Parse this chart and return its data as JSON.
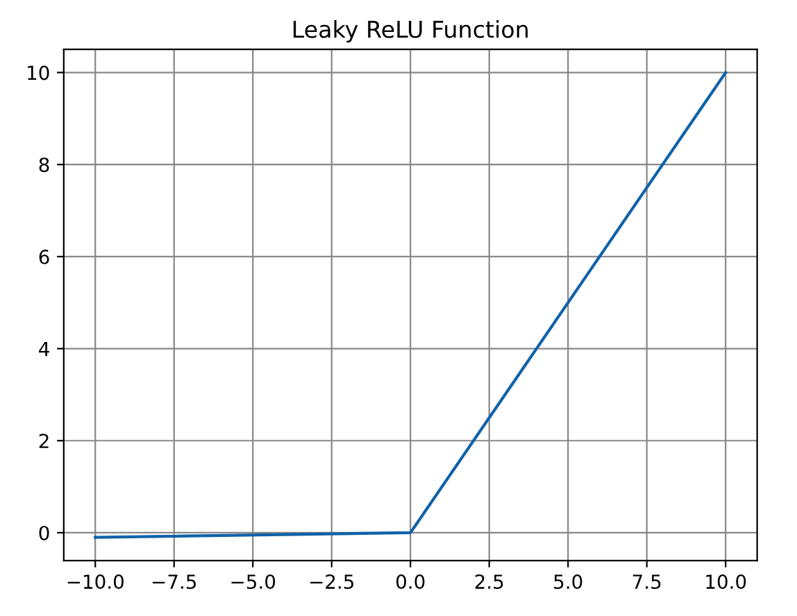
{
  "chart_data": {
    "type": "line",
    "title": "Leaky ReLU Function",
    "x": [
      -10,
      0,
      10
    ],
    "series": [
      {
        "color": "#0f62a8",
        "values": [
          -0.1,
          0,
          10
        ]
      }
    ],
    "xlim": [
      -11,
      11
    ],
    "ylim": [
      -0.605,
      10.505
    ],
    "xticks": [
      {
        "value": -10,
        "label": "−10.0"
      },
      {
        "value": -7.5,
        "label": "−7.5"
      },
      {
        "value": -5,
        "label": "−5.0"
      },
      {
        "value": -2.5,
        "label": "−2.5"
      },
      {
        "value": 0,
        "label": "0.0"
      },
      {
        "value": 2.5,
        "label": "2.5"
      },
      {
        "value": 5,
        "label": "5.0"
      },
      {
        "value": 7.5,
        "label": "7.5"
      },
      {
        "value": 10,
        "label": "10.0"
      }
    ],
    "yticks": [
      0,
      2,
      4,
      6,
      8,
      10
    ],
    "grid": true,
    "legend": false,
    "marker": "none",
    "line_style": "solid"
  }
}
